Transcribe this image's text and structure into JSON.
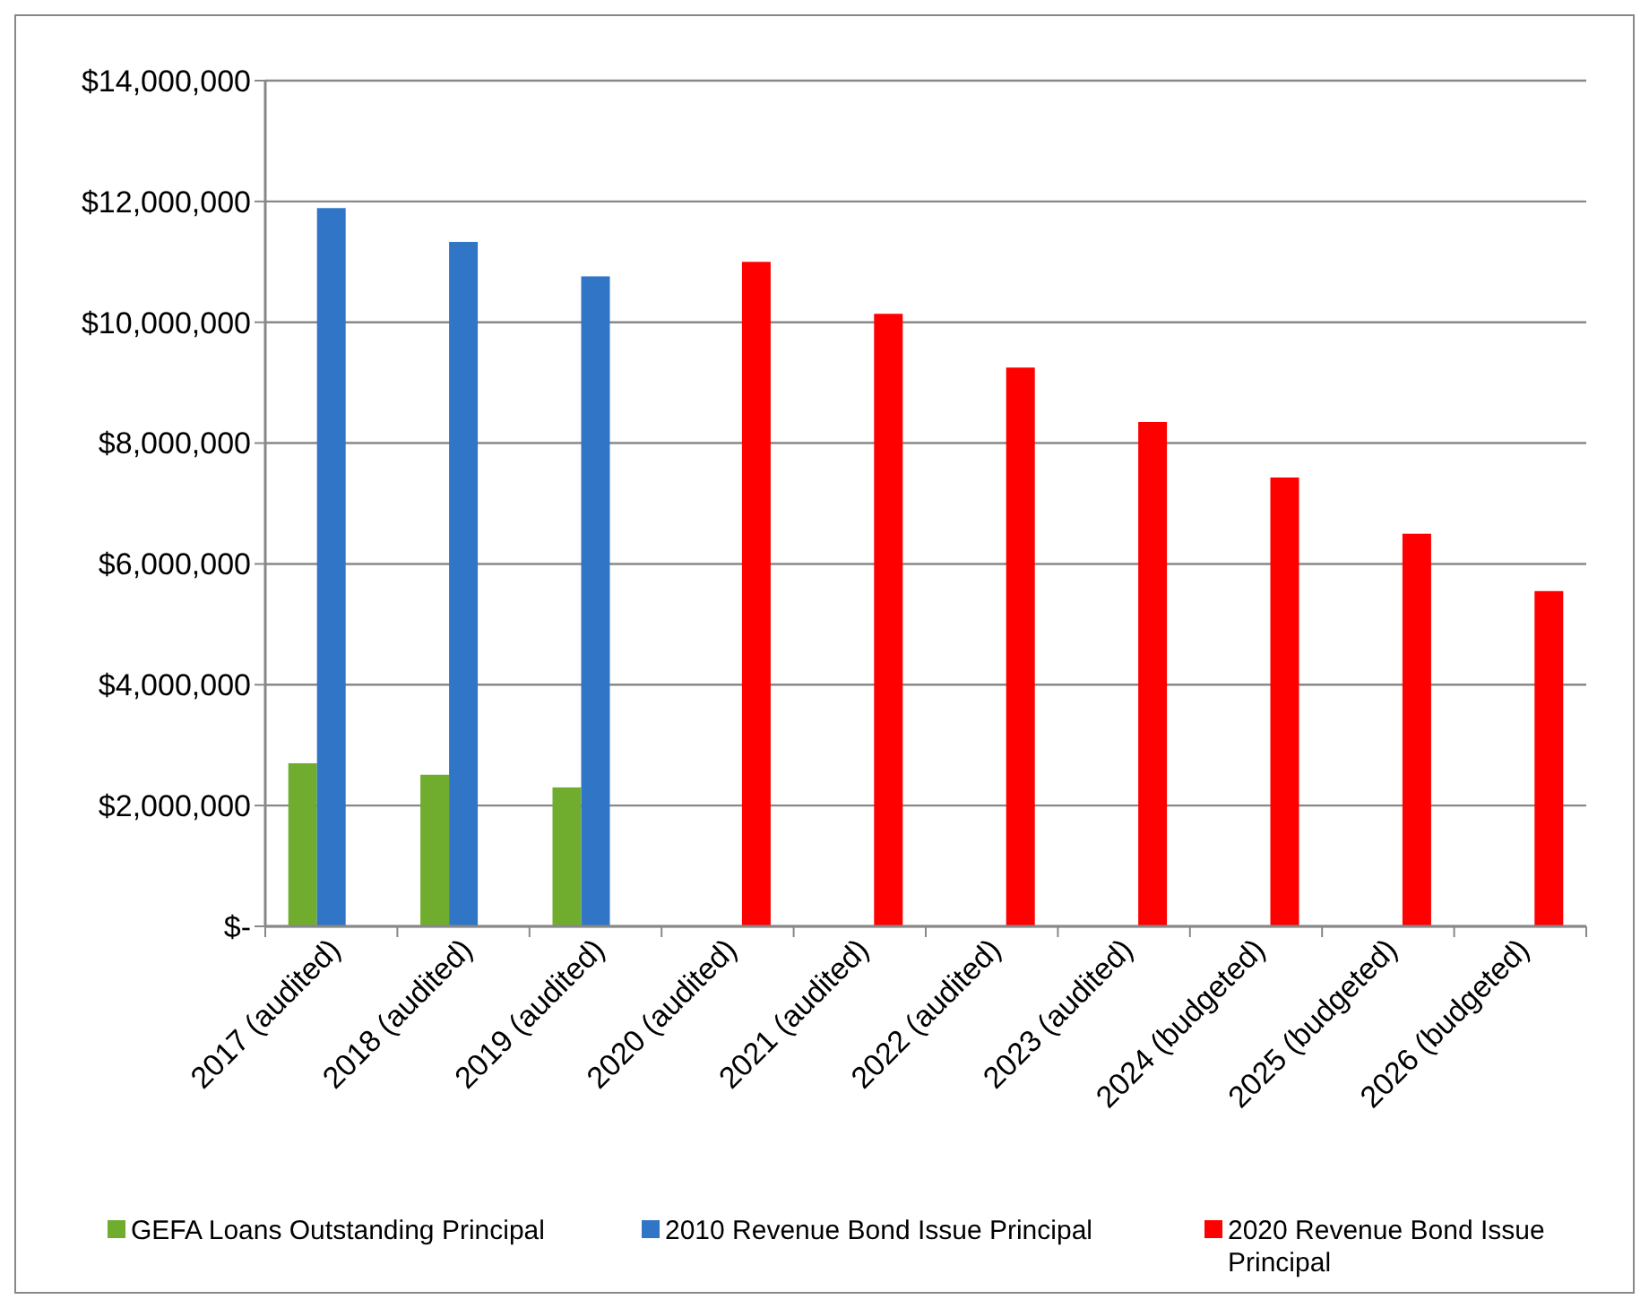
{
  "chart_data": {
    "type": "bar",
    "categories": [
      "2017 (audited)",
      "2018 (audited)",
      "2019 (audited)",
      "2020 (audited)",
      "2021 (audited)",
      "2022 (audited)",
      "2023 (audited)",
      "2024 (budgeted)",
      "2025 (budgeted)",
      "2026 (budgeted)"
    ],
    "series": [
      {
        "name": "GEFA Loans Outstanding Principal",
        "color": "#70ad2f",
        "values": [
          2700000,
          2510000,
          2300000,
          null,
          null,
          null,
          null,
          null,
          null,
          null
        ]
      },
      {
        "name": "2010 Revenue Bond Issue Principal",
        "color": "#3075c6",
        "values": [
          11890000,
          11330000,
          10760000,
          null,
          null,
          null,
          null,
          null,
          null,
          null
        ]
      },
      {
        "name": "2020 Revenue Bond Issue Principal",
        "color": "#ff0000",
        "values": [
          null,
          null,
          null,
          11000000,
          10140000,
          9250000,
          8350000,
          7430000,
          6500000,
          5550000
        ]
      }
    ],
    "ylim": [
      0,
      14000000
    ],
    "yticks": [
      {
        "value": 0,
        "label": "$-"
      },
      {
        "value": 2000000,
        "label": "$2,000,000"
      },
      {
        "value": 4000000,
        "label": "$4,000,000"
      },
      {
        "value": 6000000,
        "label": "$6,000,000"
      },
      {
        "value": 8000000,
        "label": "$8,000,000"
      },
      {
        "value": 10000000,
        "label": "$10,000,000"
      },
      {
        "value": 12000000,
        "label": "$12,000,000"
      },
      {
        "value": 14000000,
        "label": "$14,000,000"
      }
    ],
    "grid": "y",
    "legend": "bottom"
  }
}
